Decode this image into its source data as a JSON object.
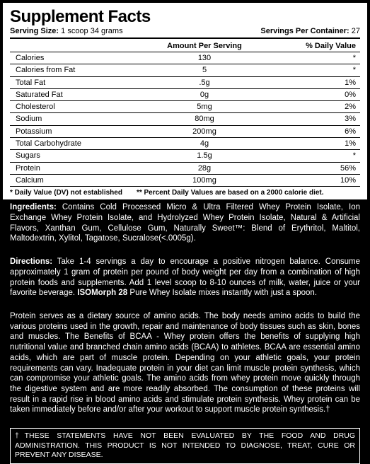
{
  "panel": {
    "title": "Supplement Facts",
    "serving_size_label": "Serving Size:",
    "serving_size_value": "1 scoop 34 grams",
    "servings_label": "Servings Per Container:",
    "servings_value": "27",
    "header_amount": "Amount Per Serving",
    "header_dv": "% Daily Value",
    "rows": [
      {
        "name": "Calories",
        "amount": "130",
        "dv": "*"
      },
      {
        "name": "Calories from Fat",
        "amount": "5",
        "dv": "*"
      },
      {
        "name": "Total Fat",
        "amount": ".5g",
        "dv": "1%"
      },
      {
        "name": "Saturated Fat",
        "amount": "0g",
        "dv": "0%"
      },
      {
        "name": "Cholesterol",
        "amount": "5mg",
        "dv": "2%"
      },
      {
        "name": "Sodium",
        "amount": "80mg",
        "dv": "3%"
      },
      {
        "name": "Potassium",
        "amount": "200mg",
        "dv": "6%"
      },
      {
        "name": "Total Carbohydrate",
        "amount": "4g",
        "dv": "1%"
      },
      {
        "name": "Sugars",
        "amount": "1.5g",
        "dv": "*"
      },
      {
        "name": "Protein",
        "amount": "28g",
        "dv": "56%"
      },
      {
        "name": "Calcium",
        "amount": "100mg",
        "dv": "10%"
      }
    ],
    "footnote1": "* Daily Value (DV) not established",
    "footnote2": "** Percent Daily Values are based on a 2000 calorie diet."
  },
  "ingredients": {
    "label": "Ingredients:",
    "text": "Contains Cold Processed Micro & Ultra Filtered Whey Protein Isolate, Ion Exchange Whey Protein Isolate, and Hydrolyzed Whey Protein Isolate, Natural & Artificial Flavors, Xanthan Gum, Cellulose Gum, Naturally Sweet™: Blend of Erythritol, Maltitol, Maltodextrin, Xylitol, Tagatose, Sucralose(<.0005g)."
  },
  "directions": {
    "label": "Directions:",
    "text1": "Take 1-4 servings a day to encourage a positive nitrogen balance. Consume approximately 1 gram of protein per pound of body weight per day from a combination of high protein foods and supplements. Add 1 level scoop to 8-10 ounces of milk, water, juice or your favorite beverage. ",
    "bold": "ISOMorph 28",
    "text2": " Pure Whey Isolate mixes instantly with just a spoon."
  },
  "body": "Protein serves as a dietary source of amino acids. The body needs amino acids to build the various proteins used in the growth, repair and maintenance of body tissues such as skin, bones and muscles. The Benefits of BCAA - Whey protein offers the benefits of supplying high nutritional value and branched chain amino acids (BCAA) to athletes. BCAA are essential amino acids, which are part of muscle protein. Depending on your athletic goals, your protein requirements can vary. Inadequate protein in your diet can limit muscle protein synthesis, which can compromise your athletic goals. The amino acids from whey protein move quickly through the digestive system and are more readily absorbed. The consumption of these proteins will result in a rapid rise in blood amino acids and stimulate protein synthesis. Whey protein can be taken immediately before and/or after your workout to support muscle protein synthesis.†",
  "disclaimer": "†THESE STATEMENTS HAVE NOT BEEN EVALUATED BY THE FOOD AND DRUG ADMINISTRATION. THIS PRODUCT IS NOT INTENDED TO DIAGNOSE, TREAT, CURE OR PREVENT ANY DISEASE."
}
